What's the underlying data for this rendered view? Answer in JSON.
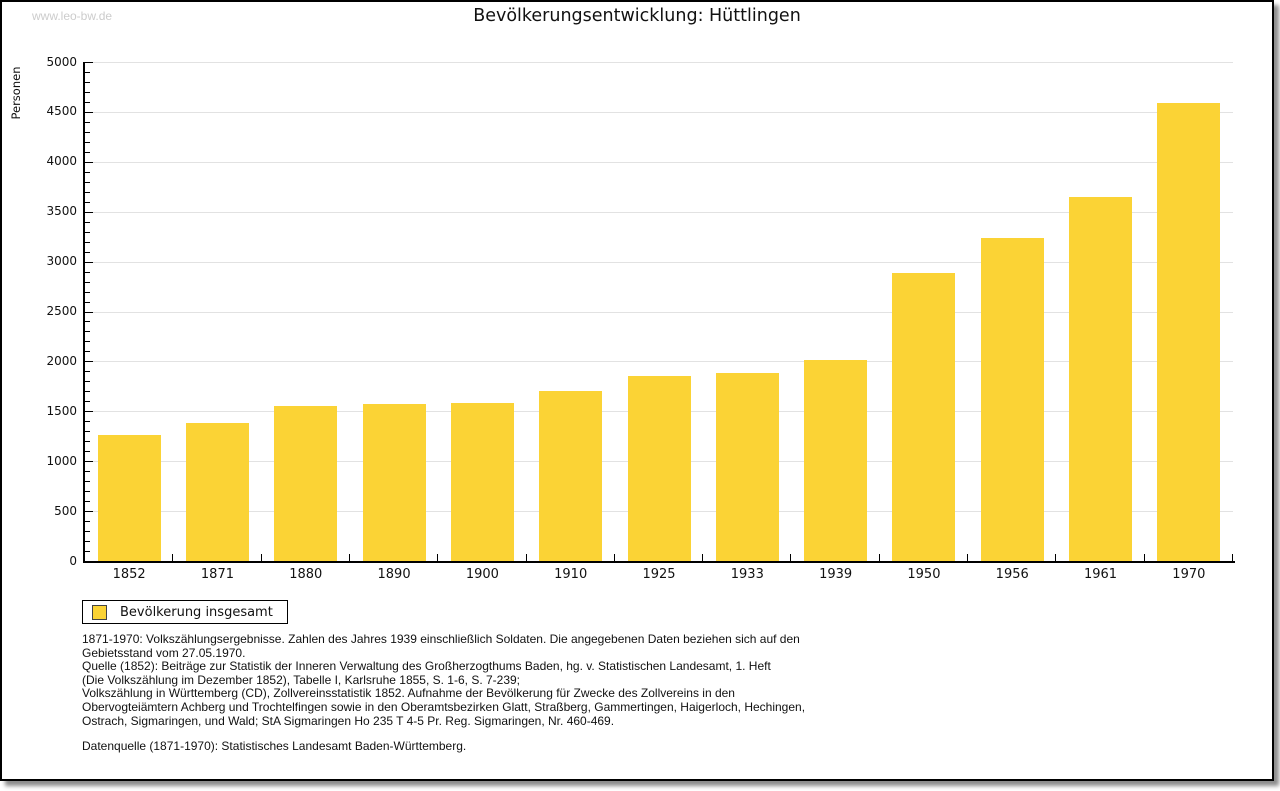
{
  "header": {
    "watermark": "www.leo-bw.de",
    "title": "Bevölkerungsentwicklung: Hüttlingen"
  },
  "chart_data": {
    "type": "bar",
    "title": "Bevölkerungsentwicklung: Hüttlingen",
    "ylabel": "Personen",
    "xlabel": "",
    "categories": [
      "1852",
      "1871",
      "1880",
      "1890",
      "1900",
      "1910",
      "1925",
      "1933",
      "1939",
      "1950",
      "1956",
      "1961",
      "1970"
    ],
    "values": [
      1260,
      1385,
      1550,
      1575,
      1580,
      1705,
      1850,
      1885,
      2010,
      2885,
      3235,
      3650,
      4590
    ],
    "series_name": "Bevölkerung insgesamt",
    "ylim": [
      0,
      5000
    ],
    "ytick_step": 500,
    "ytick_minor_step": 100,
    "ytick_labels": [
      "0",
      "500",
      "1000",
      "1500",
      "2000",
      "2500",
      "3000",
      "3500",
      "4000",
      "4500",
      "5000"
    ],
    "grid": true,
    "legend_position": "bottom-left",
    "bar_color": "#FBD335"
  },
  "legend": {
    "label": "Bevölkerung insgesamt"
  },
  "footnotes": {
    "lines": [
      "1871-1970: Volkszählungsergebnisse. Zahlen des Jahres 1939 einschließlich Soldaten. Die angegebenen Daten beziehen sich auf den",
      "Gebietsstand vom 27.05.1970.",
      "Quelle (1852): Beiträge zur Statistik der Inneren Verwaltung des Großherzogthums Baden, hg. v. Statistischen Landesamt, 1. Heft",
      "(Die Volkszählung im Dezember 1852), Tabelle I, Karlsruhe 1855, S. 1-6, S. 7-239;",
      "Volkszählung in Württemberg (CD), Zollvereinsstatistik 1852. Aufnahme der Bevölkerung für Zwecke des Zollvereins in den",
      "Obervogteiämtern Achberg und Trochtelfingen sowie in den Oberamtsbezirken Glatt, Straßberg, Gammertingen, Haigerloch, Hechingen,",
      "Ostrach, Sigmaringen, und Wald; StA Sigmaringen Ho 235 T 4-5 Pr. Reg. Sigmaringen, Nr. 460-469."
    ],
    "datasource": "Datenquelle (1871-1970): Statistisches Landesamt Baden-Württemberg."
  },
  "colors": {
    "bar": "#FBD335",
    "grid": "#E2E2E2",
    "axis": "#000000",
    "watermark": "#CCCCCC"
  }
}
